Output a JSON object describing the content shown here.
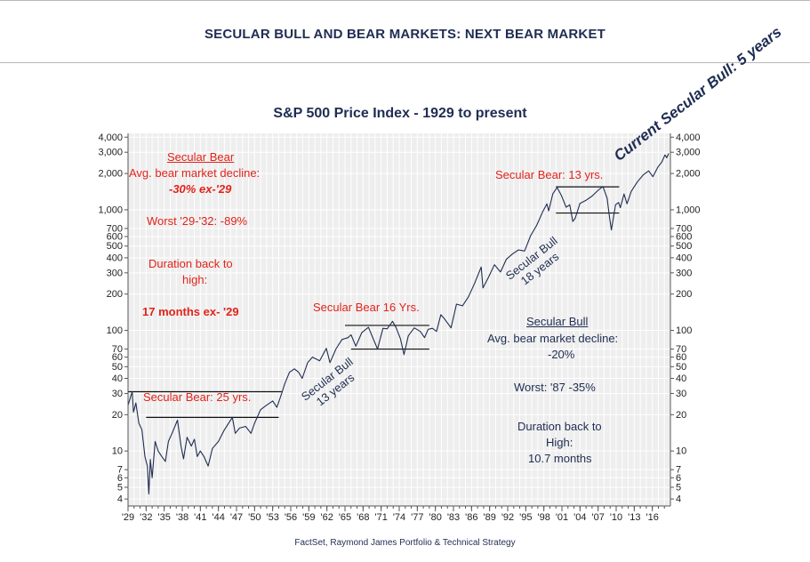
{
  "header": {
    "title": "SECULAR BULL AND BEAR MARKETS: NEXT BEAR MARKET"
  },
  "chart_data": {
    "type": "line",
    "title": "S&P 500 Price Index - 1929 to present",
    "source": "FactSet, Raymond James Portfolio & Technical Strategy",
    "yscale": "log",
    "ylim": [
      3.5,
      4300
    ],
    "xlim": [
      1929,
      2019
    ],
    "grid": true,
    "y_ticks": [
      4,
      5,
      6,
      7,
      10,
      20,
      30,
      40,
      50,
      60,
      70,
      100,
      200,
      300,
      400,
      500,
      600,
      700,
      1000,
      2000,
      3000,
      4000
    ],
    "y_tick_labels": [
      "4",
      "5",
      "6",
      "7",
      "10",
      "20",
      "30",
      "40",
      "50",
      "60",
      "70",
      "100",
      "200",
      "300",
      "400",
      "500",
      "600",
      "700",
      "1,000",
      "2,000",
      "3,000",
      "4,000"
    ],
    "x_ticks": [
      1929,
      1932,
      1935,
      1938,
      1941,
      1944,
      1947,
      1950,
      1953,
      1956,
      1959,
      1962,
      1965,
      1968,
      1971,
      1974,
      1977,
      1980,
      1983,
      1986,
      1989,
      1992,
      1995,
      1998,
      2001,
      2004,
      2007,
      2010,
      2013,
      2016
    ],
    "x_tick_labels": [
      "'29",
      "'32",
      "'35",
      "'38",
      "'41",
      "'44",
      "'47",
      "'50",
      "'53",
      "'56",
      "'59",
      "'62",
      "'65",
      "'68",
      "'71",
      "'74",
      "'77",
      "'80",
      "'83",
      "'86",
      "'89",
      "'92",
      "'95",
      "'98",
      "'01",
      "'04",
      "'07",
      "'10",
      "'13",
      "'16"
    ],
    "series": [
      {
        "color": "#1f2d52",
        "points": [
          [
            1929.0,
            24
          ],
          [
            1929.7,
            31
          ],
          [
            1929.9,
            21
          ],
          [
            1930.3,
            25
          ],
          [
            1930.8,
            17
          ],
          [
            1931.3,
            15
          ],
          [
            1931.8,
            9
          ],
          [
            1932.2,
            7.5
          ],
          [
            1932.45,
            4.4
          ],
          [
            1932.7,
            8.5
          ],
          [
            1933.0,
            6
          ],
          [
            1933.5,
            12
          ],
          [
            1934.0,
            10
          ],
          [
            1934.6,
            9
          ],
          [
            1935.2,
            8.2
          ],
          [
            1935.7,
            12
          ],
          [
            1936.3,
            14
          ],
          [
            1937.2,
            18
          ],
          [
            1937.8,
            11
          ],
          [
            1938.2,
            8.6
          ],
          [
            1938.8,
            13
          ],
          [
            1939.5,
            11
          ],
          [
            1940.0,
            12.5
          ],
          [
            1940.5,
            9
          ],
          [
            1941.0,
            10
          ],
          [
            1941.6,
            9
          ],
          [
            1942.3,
            7.5
          ],
          [
            1943.0,
            10.5
          ],
          [
            1944.0,
            12
          ],
          [
            1945.0,
            15
          ],
          [
            1946.3,
            19
          ],
          [
            1946.8,
            14
          ],
          [
            1947.5,
            15.5
          ],
          [
            1948.5,
            16
          ],
          [
            1949.4,
            14
          ],
          [
            1950.0,
            17
          ],
          [
            1951.0,
            22
          ],
          [
            1952.0,
            24
          ],
          [
            1953.0,
            26
          ],
          [
            1953.7,
            23
          ],
          [
            1954.5,
            30
          ],
          [
            1955.0,
            36
          ],
          [
            1955.8,
            45
          ],
          [
            1956.6,
            48
          ],
          [
            1957.3,
            45
          ],
          [
            1957.9,
            40
          ],
          [
            1958.8,
            54
          ],
          [
            1959.6,
            60
          ],
          [
            1960.8,
            56
          ],
          [
            1961.9,
            71
          ],
          [
            1962.5,
            54
          ],
          [
            1963.5,
            70
          ],
          [
            1964.5,
            84
          ],
          [
            1965.5,
            87
          ],
          [
            1966.0,
            92
          ],
          [
            1966.8,
            74
          ],
          [
            1967.8,
            96
          ],
          [
            1968.9,
            106
          ],
          [
            1970.4,
            70
          ],
          [
            1971.3,
            104
          ],
          [
            1972.0,
            103
          ],
          [
            1972.9,
            119
          ],
          [
            1973.5,
            105
          ],
          [
            1974.2,
            85
          ],
          [
            1974.8,
            63
          ],
          [
            1975.5,
            90
          ],
          [
            1976.5,
            105
          ],
          [
            1977.5,
            98
          ],
          [
            1978.2,
            87
          ],
          [
            1978.8,
            102
          ],
          [
            1979.5,
            104
          ],
          [
            1980.2,
            98
          ],
          [
            1980.9,
            135
          ],
          [
            1981.5,
            125
          ],
          [
            1982.6,
            105
          ],
          [
            1983.5,
            165
          ],
          [
            1984.5,
            160
          ],
          [
            1985.5,
            190
          ],
          [
            1986.5,
            245
          ],
          [
            1987.6,
            335
          ],
          [
            1987.9,
            225
          ],
          [
            1988.8,
            275
          ],
          [
            1989.8,
            350
          ],
          [
            1990.8,
            305
          ],
          [
            1991.8,
            390
          ],
          [
            1992.8,
            430
          ],
          [
            1993.8,
            465
          ],
          [
            1994.8,
            455
          ],
          [
            1995.8,
            610
          ],
          [
            1996.8,
            740
          ],
          [
            1997.8,
            960
          ],
          [
            1998.5,
            1120
          ],
          [
            1998.8,
            980
          ],
          [
            1999.5,
            1360
          ],
          [
            2000.2,
            1530
          ],
          [
            2000.9,
            1320
          ],
          [
            2001.7,
            1050
          ],
          [
            2002.3,
            1100
          ],
          [
            2002.8,
            800
          ],
          [
            2003.2,
            850
          ],
          [
            2004.0,
            1130
          ],
          [
            2005.0,
            1200
          ],
          [
            2006.0,
            1300
          ],
          [
            2007.0,
            1450
          ],
          [
            2007.8,
            1560
          ],
          [
            2008.5,
            1250
          ],
          [
            2008.9,
            870
          ],
          [
            2009.2,
            680
          ],
          [
            2009.9,
            1100
          ],
          [
            2010.4,
            1150
          ],
          [
            2010.7,
            1040
          ],
          [
            2011.3,
            1350
          ],
          [
            2011.8,
            1120
          ],
          [
            2012.5,
            1420
          ],
          [
            2013.5,
            1700
          ],
          [
            2014.5,
            1950
          ],
          [
            2015.4,
            2100
          ],
          [
            2016.1,
            1880
          ],
          [
            2016.9,
            2250
          ],
          [
            2017.6,
            2500
          ],
          [
            2018.1,
            2850
          ],
          [
            2018.4,
            2700
          ],
          [
            2018.7,
            2930
          ]
        ]
      }
    ],
    "range_lines": [
      {
        "x": [
          1929.0,
          1954.5
        ],
        "y": 31
      },
      {
        "x": [
          1932.0,
          1954.0
        ],
        "y": 19
      },
      {
        "x": [
          1965.0,
          1979.0
        ],
        "y": 110
      },
      {
        "x": [
          1966.0,
          1979.0
        ],
        "y": 70
      },
      {
        "x": [
          2000.0,
          2010.5
        ],
        "y": 1550
      },
      {
        "x": [
          2000.0,
          2010.5
        ],
        "y": 940
      }
    ],
    "annotations": {
      "secular_bear_header": "Secular Bear",
      "bear_avg_decline": "Avg. bear market decline:",
      "bear_avg_value": "-30% ex-'29",
      "bear_worst": "Worst '29-'32: -89%",
      "bear_duration": "Duration back to",
      "bear_duration_high": "high:",
      "bear_duration_value": "17 months ex- '29",
      "bear_25": "Secular Bear: 25 yrs.",
      "bear_16": "Secular Bear 16 Yrs.",
      "bear_13": "Secular Bear: 13 yrs.",
      "bull_13_line1": "Secular Bull",
      "bull_13_line2": "13 years",
      "bull_18_line1": "Secular Bull",
      "bull_18_line2": "18 years",
      "secular_bull_header": "Secular Bull",
      "bull_avg_decline": "Avg. bear market decline:",
      "bull_avg_value": "-20%",
      "bull_worst": "Worst: '87 -35%",
      "bull_duration": "Duration back to",
      "bull_duration_high": "High:",
      "bull_duration_value": "10.7 months",
      "current": "Current Secular Bull: 5 years"
    }
  }
}
